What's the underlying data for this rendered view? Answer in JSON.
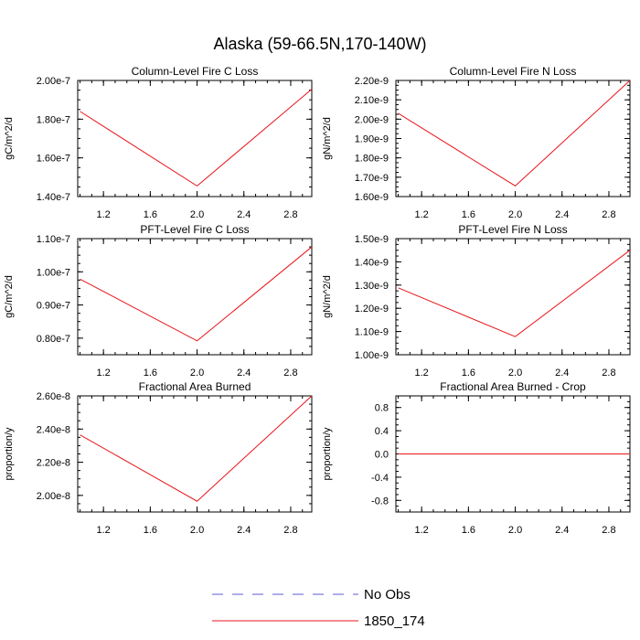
{
  "page": {
    "title": "Alaska (59-66.5N,170-140W)"
  },
  "colors": {
    "series": "#e8151b",
    "noobs": "#5b5bd6",
    "axis": "#000000"
  },
  "legend": {
    "entries": [
      {
        "label": "No Obs",
        "style": "dashed",
        "color": "#5b5bd6"
      },
      {
        "label": "1850_174",
        "style": "solid",
        "color": "#e8151b"
      }
    ]
  },
  "chart_data": [
    {
      "type": "line",
      "title": "Column-Level Fire C Loss",
      "ylabel": "gC/m^2/d",
      "xlabel": "",
      "xlim": [
        0.98,
        2.98
      ],
      "ylim": [
        1.4e-07,
        2e-07
      ],
      "xticks": [
        1.2,
        1.6,
        2.0,
        2.4,
        2.8
      ],
      "xtick_labels": [
        "1.2",
        "1.6",
        "2.0",
        "2.4",
        "2.8"
      ],
      "yticks": [
        1.4e-07,
        1.6e-07,
        1.8e-07,
        2e-07
      ],
      "ytick_labels": [
        "1.40e-7",
        "1.60e-7",
        "1.80e-7",
        "2.00e-7"
      ],
      "series": [
        {
          "name": "1850_174",
          "x": [
            1.0,
            2.0,
            3.0
          ],
          "values": [
            1.84e-07,
            1.455e-07,
            1.955e-07
          ]
        }
      ]
    },
    {
      "type": "line",
      "title": "Column-Level Fire N Loss",
      "ylabel": "gN/m^2/d",
      "xlabel": "",
      "xlim": [
        0.98,
        2.98
      ],
      "ylim": [
        1.6e-09,
        2.2e-09
      ],
      "xticks": [
        1.2,
        1.6,
        2.0,
        2.4,
        2.8
      ],
      "xtick_labels": [
        "1.2",
        "1.6",
        "2.0",
        "2.4",
        "2.8"
      ],
      "yticks": [
        1.6e-09,
        1.7e-09,
        1.8e-09,
        1.9e-09,
        2e-09,
        2.1e-09,
        2.2e-09
      ],
      "ytick_labels": [
        "1.60e-9",
        "1.70e-9",
        "1.80e-9",
        "1.90e-9",
        "2.00e-9",
        "2.10e-9",
        "2.20e-9"
      ],
      "series": [
        {
          "name": "1850_174",
          "x": [
            1.0,
            2.0,
            3.0
          ],
          "values": [
            2.03e-09,
            1.655e-09,
            2.2e-09
          ]
        }
      ]
    },
    {
      "type": "line",
      "title": "PFT-Level Fire C Loss",
      "ylabel": "gC/m^2/d",
      "xlabel": "",
      "xlim": [
        0.98,
        2.98
      ],
      "ylim": [
        7.5e-08,
        1.1e-07
      ],
      "xticks": [
        1.2,
        1.6,
        2.0,
        2.4,
        2.8
      ],
      "xtick_labels": [
        "1.2",
        "1.6",
        "2.0",
        "2.4",
        "2.8"
      ],
      "yticks": [
        8e-08,
        9e-08,
        1e-07,
        1.1e-07
      ],
      "ytick_labels": [
        "0.80e-7",
        "0.90e-7",
        "1.00e-7",
        "1.10e-7"
      ],
      "series": [
        {
          "name": "1850_174",
          "x": [
            1.0,
            2.0,
            3.0
          ],
          "values": [
            9.78e-08,
            7.92e-08,
            1.075e-07
          ]
        }
      ]
    },
    {
      "type": "line",
      "title": "PFT-Level Fire N Loss",
      "ylabel": "gN/m^2/d",
      "xlabel": "",
      "xlim": [
        0.98,
        2.98
      ],
      "ylim": [
        1e-09,
        1.5e-09
      ],
      "xticks": [
        1.2,
        1.6,
        2.0,
        2.4,
        2.8
      ],
      "xtick_labels": [
        "1.2",
        "1.6",
        "2.0",
        "2.4",
        "2.8"
      ],
      "yticks": [
        1e-09,
        1.1e-09,
        1.2e-09,
        1.3e-09,
        1.4e-09,
        1.5e-09
      ],
      "ytick_labels": [
        "1.00e-9",
        "1.10e-9",
        "1.20e-9",
        "1.30e-9",
        "1.40e-9",
        "1.50e-9"
      ],
      "series": [
        {
          "name": "1850_174",
          "x": [
            1.0,
            2.0,
            3.0
          ],
          "values": [
            1.288e-09,
            1.078e-09,
            1.45e-09
          ]
        }
      ]
    },
    {
      "type": "line",
      "title": "Fractional Area Burned",
      "ylabel": "proportion/y",
      "xlabel": "",
      "xlim": [
        0.98,
        2.98
      ],
      "ylim": [
        1.9e-08,
        2.6e-08
      ],
      "xticks": [
        1.2,
        1.6,
        2.0,
        2.4,
        2.8
      ],
      "xtick_labels": [
        "1.2",
        "1.6",
        "2.0",
        "2.4",
        "2.8"
      ],
      "yticks": [
        2e-08,
        2.2e-08,
        2.4e-08,
        2.6e-08
      ],
      "ytick_labels": [
        "2.00e-8",
        "2.20e-8",
        "2.40e-8",
        "2.60e-8"
      ],
      "series": [
        {
          "name": "1850_174",
          "x": [
            1.0,
            2.0,
            3.0
          ],
          "values": [
            2.365e-08,
            1.965e-08,
            2.6e-08
          ]
        }
      ]
    },
    {
      "type": "line",
      "title": "Fractional Area Burned - Crop",
      "ylabel": "proportion/y",
      "xlabel": "",
      "xlim": [
        0.98,
        2.98
      ],
      "ylim": [
        -1.0,
        1.0
      ],
      "xticks": [
        1.2,
        1.6,
        2.0,
        2.4,
        2.8
      ],
      "xtick_labels": [
        "1.2",
        "1.6",
        "2.0",
        "2.4",
        "2.8"
      ],
      "yticks": [
        -0.8,
        -0.4,
        0.0,
        0.4,
        0.8
      ],
      "ytick_labels": [
        "-0.8",
        "-0.4",
        "0.0",
        "0.4",
        "0.8"
      ],
      "series": [
        {
          "name": "1850_174",
          "x": [
            1.0,
            2.0,
            3.0
          ],
          "values": [
            0.0,
            0.0,
            0.0
          ]
        }
      ]
    }
  ]
}
